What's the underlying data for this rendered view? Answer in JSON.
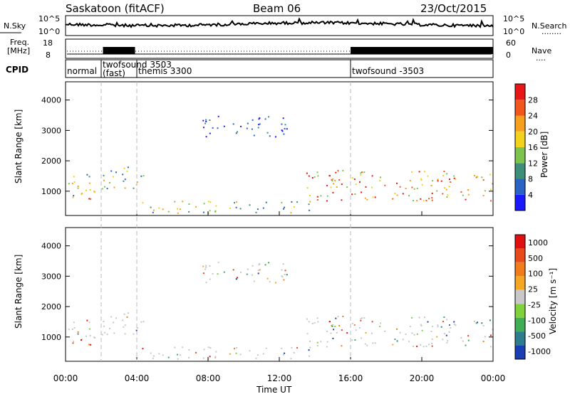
{
  "header": {
    "station": "Saskatoon (fitACF)",
    "beam": "Beam 06",
    "date": "23/Oct/2015"
  },
  "panels": {
    "noise": {
      "left_label": "N.Sky",
      "left_ticks": [
        "10^5",
        "10^0"
      ],
      "right_ticks": [
        "10^5",
        "10^0"
      ],
      "right_label": "N.Search",
      "right_legend": "........"
    },
    "freq": {
      "left_label_1": "Freq.",
      "left_label_2": "[MHz]",
      "left_ticks": [
        "18",
        "8"
      ],
      "right_ticks": [
        "60",
        "0"
      ],
      "right_label": "Nave",
      "right_legend": "....",
      "high_frequency_intervals_ut_hours": [
        [
          2.1,
          3.9
        ],
        [
          16.0,
          24.0
        ]
      ]
    },
    "cpid": {
      "label": "CPID",
      "entries": [
        {
          "start_ut": "00:00",
          "label_1": "normal",
          "label_2": ""
        },
        {
          "start_ut": "02:00",
          "label_1": "twofsound 3503",
          "label_2": "(fast)"
        },
        {
          "start_ut": "04:00",
          "label_1": "themis 3300",
          "label_2": ""
        },
        {
          "start_ut": "16:00",
          "label_1": "twofsound -3503",
          "label_2": ""
        }
      ]
    }
  },
  "chart_data": [
    {
      "type": "heatmap",
      "quantity": "Power",
      "ylabel": "Slant Range [km]",
      "ylim": [
        200,
        4600
      ],
      "yticks": [
        "1000",
        "2000",
        "3000",
        "4000"
      ],
      "colorbar_label": "Power [dB]",
      "colorbar_ticks": [
        "4",
        "8",
        "12",
        "16",
        "20",
        "24",
        "28"
      ],
      "colorbar_colors": [
        "#1a1aff",
        "#2b63c4",
        "#3e8f7a",
        "#7cc44e",
        "#f2d21a",
        "#f7a01e",
        "#f2561d",
        "#e81616"
      ],
      "scatter_regions": [
        {
          "ut": [
            0.0,
            1.7
          ],
          "range_km": [
            800,
            1700
          ],
          "level": "medium"
        },
        {
          "ut": [
            1.0,
            1.7
          ],
          "range_km": [
            500,
            800
          ],
          "level": "high"
        },
        {
          "ut": [
            2.0,
            4.5
          ],
          "range_km": [
            1100,
            1900
          ],
          "level": "medium"
        },
        {
          "ut": [
            7.5,
            12.5
          ],
          "range_km": [
            2800,
            3500
          ],
          "level": "low"
        },
        {
          "ut": [
            4.0,
            14.0
          ],
          "range_km": [
            300,
            700
          ],
          "level": "medium"
        },
        {
          "ut": [
            13.5,
            24.0
          ],
          "range_km": [
            700,
            1700
          ],
          "level": "high"
        }
      ]
    },
    {
      "type": "heatmap",
      "quantity": "Velocity",
      "ylabel": "Slant Range [km]",
      "ylim": [
        200,
        4600
      ],
      "yticks": [
        "1000",
        "2000",
        "3000",
        "4000"
      ],
      "colorbar_label": "Velocity [m s⁻¹]",
      "colorbar_ticks": [
        "1000",
        "500",
        "100",
        "25",
        "-25",
        "-100",
        "-500",
        "-1000"
      ],
      "colorbar_colors": [
        "#1a3fb5",
        "#2e7d8c",
        "#3fae55",
        "#7fd23a",
        "#c8c8c8",
        "#f5a623",
        "#f07d1a",
        "#e84a1a",
        "#e01010"
      ],
      "xlabel": "Time UT",
      "xticks": [
        "00:00",
        "04:00",
        "08:00",
        "12:00",
        "16:00",
        "20:00",
        "00:00"
      ]
    }
  ]
}
